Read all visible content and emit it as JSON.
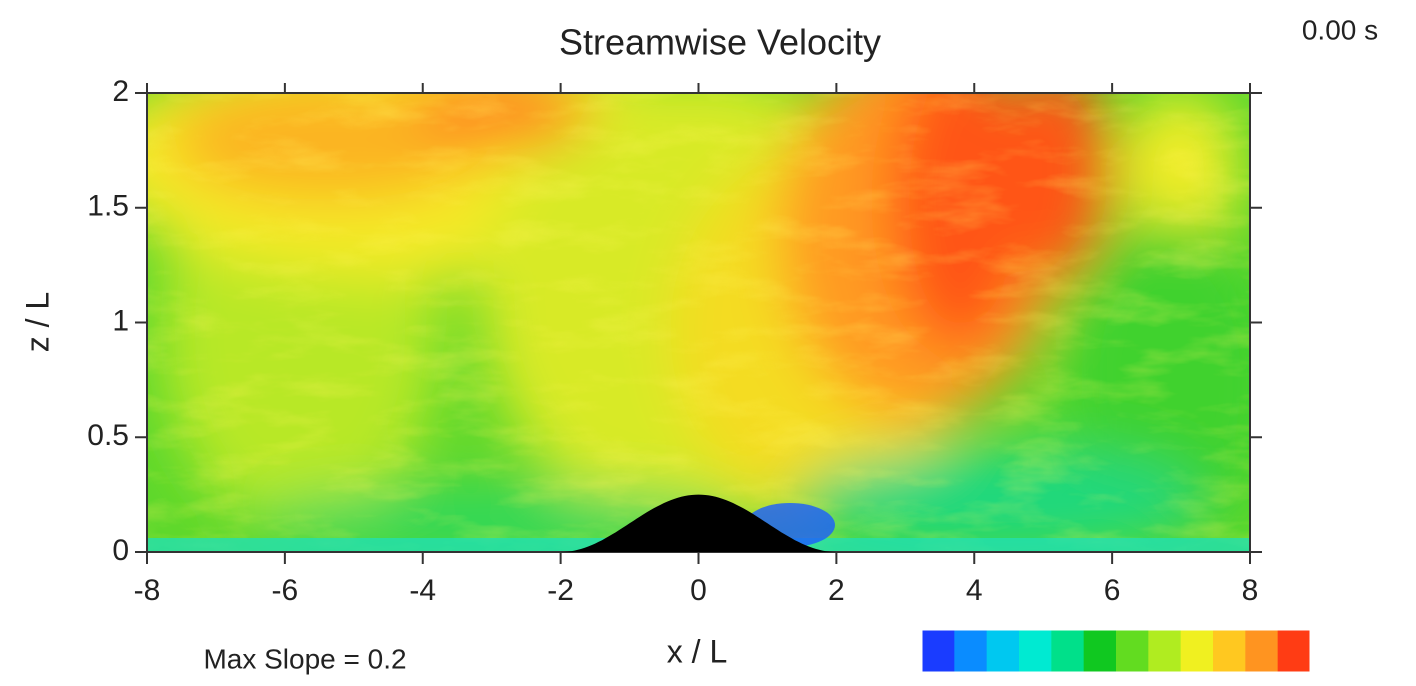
{
  "chart_data": {
    "type": "field",
    "title": "Streamwise Velocity",
    "time_label": "0.00 s",
    "annotation": "Max Slope = 0.2",
    "x_label": "x / L",
    "y_label": "z / L",
    "xlim": [
      -8,
      8
    ],
    "xticks": [
      -8,
      -6,
      -4,
      -2,
      0,
      2,
      4,
      6,
      8
    ],
    "ylim": [
      0,
      2
    ],
    "yticks": [
      0,
      0.5,
      1,
      1.5,
      2
    ],
    "hill": {
      "peak": 0.25,
      "half_width": 2,
      "color": "#000000"
    },
    "colorbar": [
      "#1a3cff",
      "#0a8cff",
      "#00c8f0",
      "#00ead2",
      "#00e08a",
      "#10c820",
      "#62dc20",
      "#b0ec20",
      "#f0f020",
      "#ffc820",
      "#ff9420",
      "#ff3c14"
    ]
  }
}
